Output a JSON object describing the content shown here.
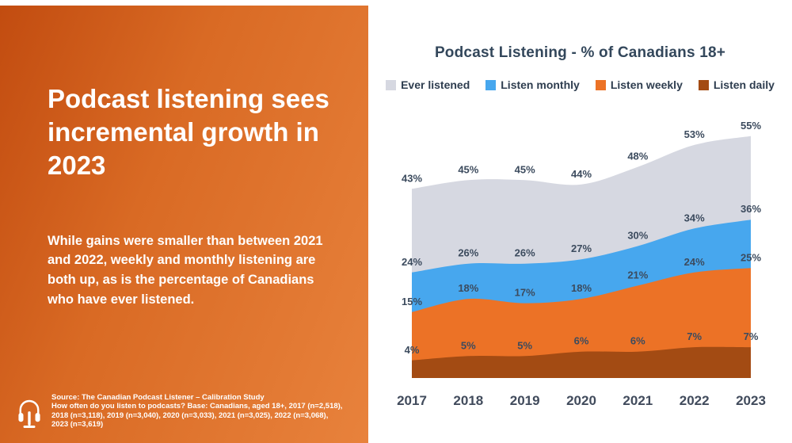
{
  "theme": {
    "left_gradient_start": "#c24c10",
    "left_gradient_mid": "#d96a24",
    "left_gradient_end": "#e8823c",
    "title_text_color": "#33475b",
    "label_color": "#3c4b5e",
    "axis_label_color": "#414b5c"
  },
  "left_panel": {
    "title": "Podcast listening sees incremental growth in 2023",
    "body": "While gains were smaller than between 2021 and 2022, weekly and monthly listening are both up, as is the percentage of Canadians who have ever listened.",
    "source_line1": "Source: The Canadian Podcast Listener – Calibration Study",
    "source_line2": "How often do you listen to podcasts? Base: Canadians, aged 18+, 2017 (n=2,518), 2018 (n=3,118), 2019 (n=3,040), 2020 (n=3,033), 2021 (n=3,025), 2022 (n=3,068), 2023 (n=3,619)",
    "icon": "headphones-stand-icon"
  },
  "chart_data": {
    "type": "area",
    "title": "Podcast Listening - % of Canadians 18+",
    "categories": [
      "2017",
      "2018",
      "2019",
      "2020",
      "2021",
      "2022",
      "2023"
    ],
    "series": [
      {
        "name": "Ever listened",
        "color": "#d6d8e1",
        "values": [
          43,
          45,
          45,
          44,
          48,
          53,
          55
        ]
      },
      {
        "name": "Listen monthly",
        "color": "#47a7ee",
        "values": [
          24,
          26,
          26,
          27,
          30,
          34,
          36
        ]
      },
      {
        "name": "Listen weekly",
        "color": "#ec7226",
        "values": [
          15,
          18,
          17,
          18,
          21,
          24,
          25
        ]
      },
      {
        "name": "Listen daily",
        "color": "#a34b13",
        "values": [
          4,
          5,
          5,
          6,
          6,
          7,
          7
        ]
      }
    ],
    "ylim": [
      0,
      60
    ],
    "grid": false,
    "legend_position": "top",
    "label_format": "{v}%"
  }
}
